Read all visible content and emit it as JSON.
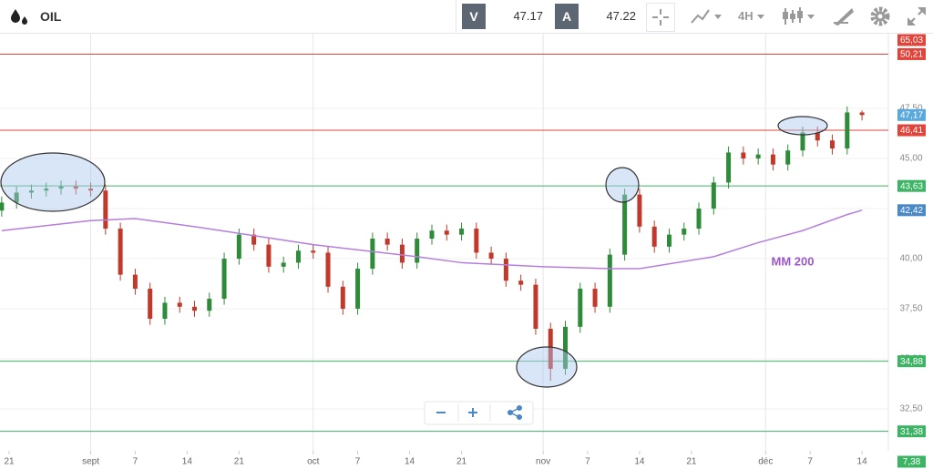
{
  "toolbar": {
    "symbol": "OIL",
    "sell_label": "V",
    "sell_price": "47.17",
    "buy_label": "A",
    "buy_price": "47.22",
    "timeframe": "4H"
  },
  "chart_data": {
    "type": "candlestick",
    "x": [
      -1,
      1,
      3,
      5,
      7,
      9,
      11,
      13,
      15,
      17,
      19,
      21,
      23,
      25,
      27,
      29,
      31,
      33,
      35,
      37,
      39,
      41,
      43,
      45,
      47,
      49,
      51,
      53,
      55,
      57,
      59,
      61,
      63,
      65,
      67,
      69,
      71,
      73,
      75,
      77,
      79,
      81,
      83,
      85,
      87,
      89,
      91,
      93,
      95,
      97,
      99,
      101,
      103,
      105,
      107,
      109,
      111,
      113,
      115
    ],
    "open": [
      42.4,
      42.8,
      43.3,
      43.4,
      43.5,
      43.6,
      43.5,
      43.4,
      41.5,
      39.2,
      38.5,
      37.0,
      37.8,
      37.6,
      37.4,
      38.0,
      40.0,
      41.2,
      40.7,
      39.6,
      39.8,
      40.4,
      40.3,
      38.6,
      37.5,
      39.5,
      41.0,
      40.7,
      39.8,
      41.0,
      41.4,
      41.2,
      41.5,
      40.3,
      40.0,
      38.9,
      38.7,
      36.5,
      34.5,
      36.6,
      38.5,
      37.6,
      40.2,
      43.2,
      41.6,
      40.6,
      41.2,
      41.5,
      42.5,
      43.8,
      45.3,
      45.0,
      45.2,
      44.7,
      45.4,
      46.3,
      45.9,
      45.5,
      47.3
    ],
    "high": [
      43.1,
      43.6,
      43.7,
      43.8,
      43.9,
      43.9,
      43.8,
      43.7,
      41.8,
      39.5,
      38.8,
      38.1,
      38.1,
      37.9,
      38.3,
      40.3,
      41.5,
      41.5,
      41.0,
      40.1,
      40.7,
      40.7,
      40.6,
      38.9,
      39.8,
      41.3,
      41.3,
      41.0,
      41.3,
      41.7,
      41.7,
      41.8,
      41.8,
      40.6,
      40.3,
      39.2,
      39.0,
      36.8,
      36.9,
      38.8,
      38.8,
      40.5,
      43.5,
      43.5,
      41.9,
      41.5,
      41.8,
      42.8,
      44.1,
      45.6,
      45.6,
      45.5,
      45.5,
      45.7,
      46.6,
      46.6,
      46.2,
      47.6,
      47.4
    ],
    "low": [
      42.1,
      42.5,
      43.0,
      43.1,
      43.2,
      43.2,
      43.1,
      41.2,
      38.9,
      38.2,
      36.7,
      36.7,
      37.3,
      37.1,
      37.1,
      37.7,
      39.7,
      40.4,
      39.3,
      39.3,
      39.5,
      40.0,
      38.3,
      37.2,
      37.2,
      39.2,
      40.4,
      39.5,
      39.5,
      40.7,
      40.9,
      40.9,
      40.0,
      39.7,
      38.6,
      38.4,
      36.2,
      33.9,
      34.2,
      36.3,
      37.3,
      37.3,
      39.9,
      41.3,
      40.3,
      40.3,
      40.9,
      41.2,
      42.2,
      43.5,
      44.7,
      44.7,
      44.4,
      44.4,
      45.1,
      45.6,
      45.2,
      45.2,
      46.9
    ],
    "close": [
      42.8,
      43.3,
      43.4,
      43.5,
      43.6,
      43.5,
      43.4,
      41.5,
      39.2,
      38.5,
      37.0,
      37.8,
      37.6,
      37.4,
      38.0,
      40.0,
      41.2,
      40.7,
      39.6,
      39.8,
      40.4,
      40.3,
      38.6,
      37.5,
      39.5,
      41.0,
      40.7,
      39.8,
      41.0,
      41.4,
      41.2,
      41.5,
      40.3,
      40.0,
      38.9,
      38.7,
      36.5,
      34.5,
      36.6,
      38.5,
      37.6,
      40.2,
      43.2,
      41.6,
      40.6,
      41.2,
      41.5,
      42.5,
      43.8,
      45.3,
      45.0,
      45.2,
      44.7,
      45.4,
      46.3,
      45.9,
      45.5,
      47.3,
      47.17
    ],
    "up_color": "#2e8b3a",
    "down_color": "#c0392b",
    "xlim": [
      -1.23,
      118.55
    ],
    "xticks": [
      {
        "value": 0,
        "label": "21"
      },
      {
        "value": 11,
        "label": "sept"
      },
      {
        "value": 17,
        "label": "7"
      },
      {
        "value": 24,
        "label": "14"
      },
      {
        "value": 31,
        "label": "21"
      },
      {
        "value": 41,
        "label": "oct"
      },
      {
        "value": 47,
        "label": "7"
      },
      {
        "value": 54,
        "label": "14"
      },
      {
        "value": 61,
        "label": "21"
      },
      {
        "value": 72,
        "label": "nov"
      },
      {
        "value": 78,
        "label": "7"
      },
      {
        "value": 85,
        "label": "14"
      },
      {
        "value": 92,
        "label": "21"
      },
      {
        "value": 102,
        "label": "déc"
      },
      {
        "value": 108,
        "label": "7"
      },
      {
        "value": 115,
        "label": "14"
      }
    ],
    "ylim": [
      30.41,
      51.23
    ],
    "yticks": [
      {
        "value": 32.5,
        "label": "32,50"
      },
      {
        "value": 35,
        "label": "35,00"
      },
      {
        "value": 37.5,
        "label": "37,50"
      },
      {
        "value": 40,
        "label": "40,00"
      },
      {
        "value": 42.5,
        "label": "42,50"
      },
      {
        "value": 45,
        "label": "45,00"
      },
      {
        "value": 47.5,
        "label": "47,50"
      }
    ],
    "grid": true,
    "overlays": [
      {
        "name": "MM 200",
        "color": "#b57edc",
        "x": [
          -1,
          11,
          17,
          25,
          41,
          55,
          61,
          72,
          81,
          85,
          95,
          101,
          107,
          113,
          115
        ],
        "values": [
          41.4,
          41.9,
          42.0,
          41.6,
          40.7,
          40.1,
          39.8,
          39.6,
          39.5,
          39.5,
          40.1,
          40.8,
          41.4,
          42.2,
          42.42
        ]
      }
    ],
    "levels": [
      {
        "value": 65.03,
        "label": "65,03",
        "color": "#e0443a"
      },
      {
        "value": 50.21,
        "label": "50,21",
        "color": "#e0443a"
      },
      {
        "value": 46.41,
        "label": "46,41",
        "color": "#e0443a"
      },
      {
        "value": 43.63,
        "label": "43,63",
        "color": "#3cb463"
      },
      {
        "value": 34.88,
        "label": "34,88",
        "color": "#3cb463"
      },
      {
        "value": 31.38,
        "label": "31,38",
        "color": "#3cb463"
      },
      {
        "value": 7.38,
        "label": "7,38",
        "color": "#3cb463"
      }
    ],
    "price_tags": [
      {
        "value": 47.17,
        "label": "47,17",
        "color": "#5aa9dc"
      },
      {
        "value": 42.42,
        "label": "42,42",
        "color": "#4a88c7"
      }
    ]
  }
}
